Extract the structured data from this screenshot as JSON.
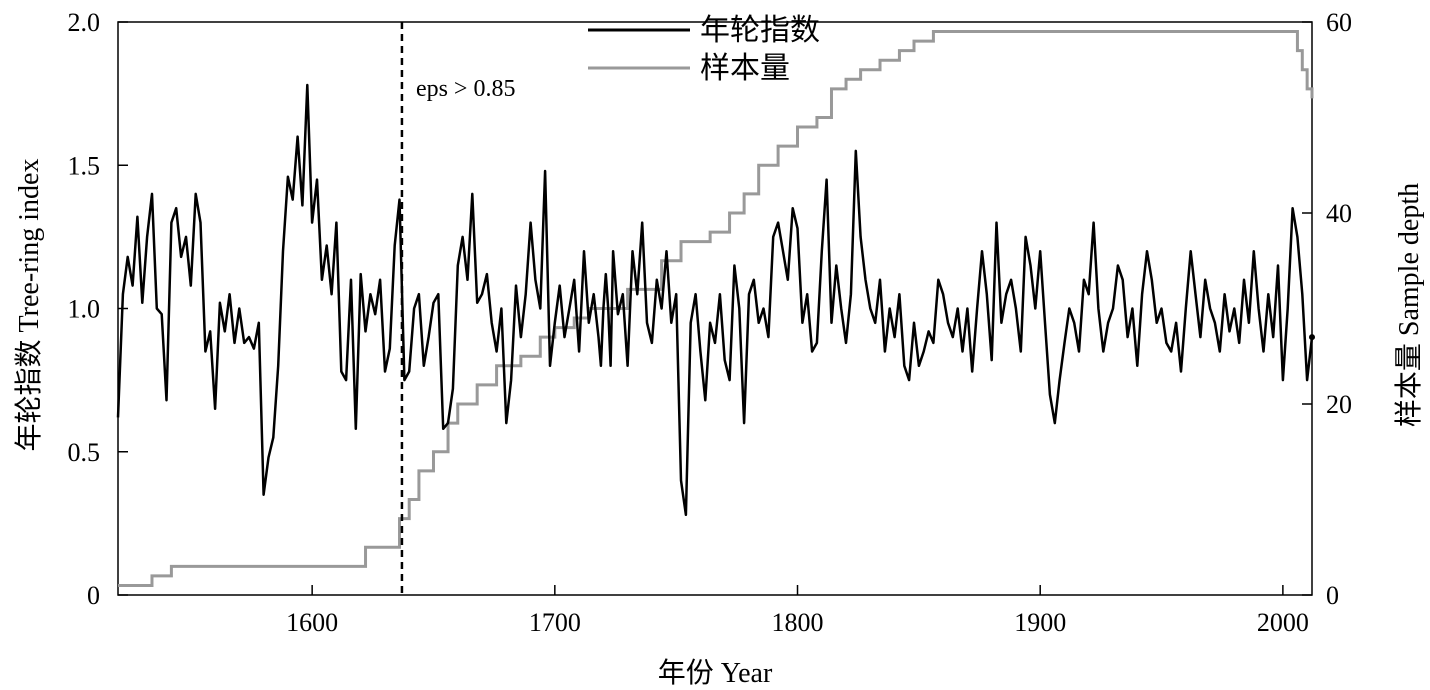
{
  "chart_data": {
    "type": "line",
    "title": "",
    "xlabel": "年份 Year",
    "ylabel_left": "年轮指数 Tree-ring index",
    "ylabel_right": "样本量 Sample depth",
    "xlim": [
      1520,
      2012
    ],
    "ylim_left": [
      0,
      2.0
    ],
    "ylim_right": [
      0,
      60
    ],
    "x_ticks": [
      1600,
      1700,
      1800,
      1900,
      2000
    ],
    "y_ticks_left": [
      "0",
      "0.5",
      "1.0",
      "1.5",
      "2.0"
    ],
    "y_ticks_right": [
      "0",
      "20",
      "40",
      "60"
    ],
    "grid": false,
    "legend_position": "top-center",
    "colors": {
      "index": "#000000",
      "depth": "#999999"
    },
    "annotation": {
      "text": "eps > 0.85",
      "x": 1637
    },
    "series": [
      {
        "name": "年轮指数",
        "axis": "left",
        "points": [
          [
            1520,
            0.62
          ],
          [
            1522,
            1.05
          ],
          [
            1524,
            1.18
          ],
          [
            1526,
            1.08
          ],
          [
            1528,
            1.32
          ],
          [
            1530,
            1.02
          ],
          [
            1532,
            1.25
          ],
          [
            1534,
            1.4
          ],
          [
            1536,
            1.0
          ],
          [
            1538,
            0.98
          ],
          [
            1540,
            0.68
          ],
          [
            1542,
            1.3
          ],
          [
            1544,
            1.35
          ],
          [
            1546,
            1.18
          ],
          [
            1548,
            1.25
          ],
          [
            1550,
            1.08
          ],
          [
            1552,
            1.4
          ],
          [
            1554,
            1.3
          ],
          [
            1556,
            0.85
          ],
          [
            1558,
            0.92
          ],
          [
            1560,
            0.65
          ],
          [
            1562,
            1.02
          ],
          [
            1564,
            0.92
          ],
          [
            1566,
            1.05
          ],
          [
            1568,
            0.88
          ],
          [
            1570,
            1.0
          ],
          [
            1572,
            0.88
          ],
          [
            1574,
            0.9
          ],
          [
            1576,
            0.86
          ],
          [
            1578,
            0.95
          ],
          [
            1580,
            0.35
          ],
          [
            1582,
            0.48
          ],
          [
            1584,
            0.55
          ],
          [
            1586,
            0.8
          ],
          [
            1588,
            1.2
          ],
          [
            1590,
            1.46
          ],
          [
            1592,
            1.38
          ],
          [
            1594,
            1.6
          ],
          [
            1596,
            1.36
          ],
          [
            1598,
            1.78
          ],
          [
            1600,
            1.3
          ],
          [
            1602,
            1.45
          ],
          [
            1604,
            1.1
          ],
          [
            1606,
            1.22
          ],
          [
            1608,
            1.05
          ],
          [
            1610,
            1.3
          ],
          [
            1612,
            0.78
          ],
          [
            1614,
            0.75
          ],
          [
            1616,
            1.1
          ],
          [
            1618,
            0.58
          ],
          [
            1620,
            1.12
          ],
          [
            1622,
            0.92
          ],
          [
            1624,
            1.05
          ],
          [
            1626,
            0.98
          ],
          [
            1628,
            1.1
          ],
          [
            1630,
            0.78
          ],
          [
            1632,
            0.86
          ],
          [
            1634,
            1.22
          ],
          [
            1636,
            1.38
          ],
          [
            1638,
            0.75
          ],
          [
            1640,
            0.78
          ],
          [
            1642,
            1.0
          ],
          [
            1644,
            1.05
          ],
          [
            1646,
            0.8
          ],
          [
            1648,
            0.9
          ],
          [
            1650,
            1.02
          ],
          [
            1652,
            1.05
          ],
          [
            1654,
            0.58
          ],
          [
            1656,
            0.6
          ],
          [
            1658,
            0.72
          ],
          [
            1660,
            1.15
          ],
          [
            1662,
            1.25
          ],
          [
            1664,
            1.1
          ],
          [
            1666,
            1.4
          ],
          [
            1668,
            1.02
          ],
          [
            1670,
            1.05
          ],
          [
            1672,
            1.12
          ],
          [
            1674,
            0.95
          ],
          [
            1676,
            0.85
          ],
          [
            1678,
            1.0
          ],
          [
            1680,
            0.6
          ],
          [
            1682,
            0.75
          ],
          [
            1684,
            1.08
          ],
          [
            1686,
            0.9
          ],
          [
            1688,
            1.05
          ],
          [
            1690,
            1.3
          ],
          [
            1692,
            1.1
          ],
          [
            1694,
            1.0
          ],
          [
            1696,
            1.48
          ],
          [
            1698,
            0.8
          ],
          [
            1700,
            0.95
          ],
          [
            1702,
            1.08
          ],
          [
            1704,
            0.9
          ],
          [
            1706,
            1.0
          ],
          [
            1708,
            1.1
          ],
          [
            1710,
            0.85
          ],
          [
            1712,
            1.2
          ],
          [
            1714,
            0.95
          ],
          [
            1716,
            1.05
          ],
          [
            1718,
            0.9
          ],
          [
            1719,
            0.8
          ],
          [
            1720,
            1.0
          ],
          [
            1721,
            1.12
          ],
          [
            1722,
            1.0
          ],
          [
            1723,
            0.8
          ],
          [
            1724,
            1.2
          ],
          [
            1726,
            0.98
          ],
          [
            1728,
            1.05
          ],
          [
            1730,
            0.8
          ],
          [
            1732,
            1.2
          ],
          [
            1734,
            1.05
          ],
          [
            1736,
            1.3
          ],
          [
            1738,
            0.95
          ],
          [
            1740,
            0.88
          ],
          [
            1742,
            1.1
          ],
          [
            1744,
            1.0
          ],
          [
            1746,
            1.2
          ],
          [
            1748,
            0.95
          ],
          [
            1750,
            1.05
          ],
          [
            1752,
            0.4
          ],
          [
            1754,
            0.28
          ],
          [
            1756,
            0.95
          ],
          [
            1758,
            1.05
          ],
          [
            1760,
            0.85
          ],
          [
            1762,
            0.68
          ],
          [
            1764,
            0.95
          ],
          [
            1766,
            0.88
          ],
          [
            1768,
            1.05
          ],
          [
            1770,
            0.82
          ],
          [
            1772,
            0.75
          ],
          [
            1774,
            1.15
          ],
          [
            1776,
            1.0
          ],
          [
            1778,
            0.6
          ],
          [
            1780,
            1.05
          ],
          [
            1782,
            1.1
          ],
          [
            1784,
            0.95
          ],
          [
            1786,
            1.0
          ],
          [
            1788,
            0.9
          ],
          [
            1790,
            1.25
          ],
          [
            1792,
            1.3
          ],
          [
            1794,
            1.2
          ],
          [
            1796,
            1.1
          ],
          [
            1798,
            1.35
          ],
          [
            1800,
            1.28
          ],
          [
            1802,
            0.95
          ],
          [
            1804,
            1.05
          ],
          [
            1806,
            0.85
          ],
          [
            1808,
            0.88
          ],
          [
            1810,
            1.2
          ],
          [
            1812,
            1.45
          ],
          [
            1814,
            0.95
          ],
          [
            1816,
            1.15
          ],
          [
            1818,
            1.0
          ],
          [
            1820,
            0.88
          ],
          [
            1822,
            1.05
          ],
          [
            1824,
            1.55
          ],
          [
            1826,
            1.25
          ],
          [
            1828,
            1.1
          ],
          [
            1830,
            1.0
          ],
          [
            1832,
            0.95
          ],
          [
            1834,
            1.1
          ],
          [
            1836,
            0.85
          ],
          [
            1838,
            1.0
          ],
          [
            1840,
            0.9
          ],
          [
            1842,
            1.05
          ],
          [
            1844,
            0.8
          ],
          [
            1846,
            0.75
          ],
          [
            1848,
            0.95
          ],
          [
            1850,
            0.8
          ],
          [
            1852,
            0.85
          ],
          [
            1854,
            0.92
          ],
          [
            1856,
            0.88
          ],
          [
            1858,
            1.1
          ],
          [
            1860,
            1.05
          ],
          [
            1862,
            0.95
          ],
          [
            1864,
            0.9
          ],
          [
            1866,
            1.0
          ],
          [
            1868,
            0.85
          ],
          [
            1870,
            1.0
          ],
          [
            1872,
            0.78
          ],
          [
            1874,
            1.0
          ],
          [
            1876,
            1.2
          ],
          [
            1878,
            1.05
          ],
          [
            1880,
            0.82
          ],
          [
            1882,
            1.3
          ],
          [
            1884,
            0.95
          ],
          [
            1886,
            1.05
          ],
          [
            1888,
            1.1
          ],
          [
            1890,
            1.0
          ],
          [
            1892,
            0.85
          ],
          [
            1894,
            1.25
          ],
          [
            1896,
            1.15
          ],
          [
            1898,
            1.0
          ],
          [
            1900,
            1.2
          ],
          [
            1902,
            0.95
          ],
          [
            1904,
            0.7
          ],
          [
            1906,
            0.6
          ],
          [
            1908,
            0.75
          ],
          [
            1910,
            0.88
          ],
          [
            1912,
            1.0
          ],
          [
            1914,
            0.95
          ],
          [
            1916,
            0.85
          ],
          [
            1918,
            1.1
          ],
          [
            1920,
            1.05
          ],
          [
            1922,
            1.3
          ],
          [
            1924,
            1.0
          ],
          [
            1926,
            0.85
          ],
          [
            1928,
            0.95
          ],
          [
            1930,
            1.0
          ],
          [
            1932,
            1.15
          ],
          [
            1934,
            1.1
          ],
          [
            1936,
            0.9
          ],
          [
            1938,
            1.0
          ],
          [
            1940,
            0.8
          ],
          [
            1942,
            1.05
          ],
          [
            1944,
            1.2
          ],
          [
            1946,
            1.1
          ],
          [
            1948,
            0.95
          ],
          [
            1950,
            1.0
          ],
          [
            1952,
            0.88
          ],
          [
            1954,
            0.85
          ],
          [
            1956,
            0.95
          ],
          [
            1958,
            0.78
          ],
          [
            1960,
            1.0
          ],
          [
            1962,
            1.2
          ],
          [
            1964,
            1.05
          ],
          [
            1966,
            0.9
          ],
          [
            1968,
            1.1
          ],
          [
            1970,
            1.0
          ],
          [
            1972,
            0.95
          ],
          [
            1974,
            0.85
          ],
          [
            1976,
            1.05
          ],
          [
            1978,
            0.92
          ],
          [
            1980,
            1.0
          ],
          [
            1982,
            0.88
          ],
          [
            1984,
            1.1
          ],
          [
            1986,
            0.95
          ],
          [
            1988,
            1.2
          ],
          [
            1990,
            1.0
          ],
          [
            1992,
            0.85
          ],
          [
            1994,
            1.05
          ],
          [
            1996,
            0.9
          ],
          [
            1998,
            1.15
          ],
          [
            2000,
            0.75
          ],
          [
            2002,
            1.0
          ],
          [
            2004,
            1.35
          ],
          [
            2006,
            1.25
          ],
          [
            2008,
            1.05
          ],
          [
            2010,
            0.75
          ],
          [
            2012,
            0.9
          ]
        ]
      },
      {
        "name": "样本量",
        "axis": "right",
        "points": [
          [
            1520,
            1
          ],
          [
            1532,
            1
          ],
          [
            1534,
            2
          ],
          [
            1540,
            2
          ],
          [
            1542,
            3
          ],
          [
            1616,
            3
          ],
          [
            1622,
            5
          ],
          [
            1636,
            8
          ],
          [
            1640,
            10
          ],
          [
            1644,
            13
          ],
          [
            1650,
            15
          ],
          [
            1656,
            18
          ],
          [
            1660,
            20
          ],
          [
            1668,
            22
          ],
          [
            1676,
            24
          ],
          [
            1686,
            25
          ],
          [
            1694,
            27
          ],
          [
            1700,
            28
          ],
          [
            1708,
            29
          ],
          [
            1714,
            30
          ],
          [
            1730,
            32
          ],
          [
            1744,
            35
          ],
          [
            1752,
            37
          ],
          [
            1764,
            38
          ],
          [
            1772,
            40
          ],
          [
            1778,
            42
          ],
          [
            1784,
            45
          ],
          [
            1792,
            47
          ],
          [
            1800,
            49
          ],
          [
            1808,
            50
          ],
          [
            1814,
            53
          ],
          [
            1820,
            54
          ],
          [
            1826,
            55
          ],
          [
            1834,
            56
          ],
          [
            1842,
            57
          ],
          [
            1848,
            58
          ],
          [
            1856,
            59
          ],
          [
            1862,
            59
          ],
          [
            2004,
            59
          ],
          [
            2006,
            57
          ],
          [
            2008,
            55
          ],
          [
            2010,
            53
          ],
          [
            2012,
            52
          ]
        ]
      }
    ]
  }
}
